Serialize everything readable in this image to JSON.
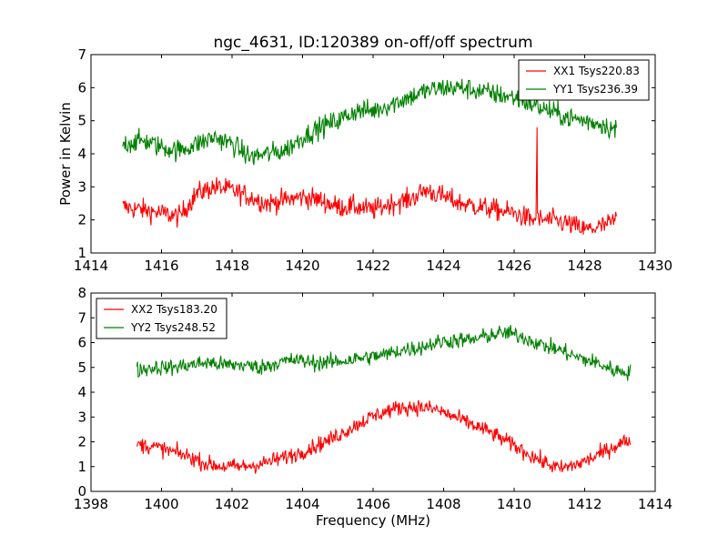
{
  "figure": {
    "title": "ngc_4631, ID:120389 on-off/off spectrum"
  },
  "chart_data": [
    {
      "type": "line",
      "title": "ngc_4631, ID:120389 on-off/off spectrum",
      "xlabel": "",
      "ylabel": "Power in Kelvin",
      "xlim": [
        1414,
        1430
      ],
      "ylim": [
        1,
        7
      ],
      "xticks": [
        "1414",
        "1416",
        "1418",
        "1420",
        "1422",
        "1424",
        "1426",
        "1428",
        "1430"
      ],
      "yticks": [
        "1",
        "2",
        "3",
        "4",
        "5",
        "6",
        "7"
      ],
      "grid": false,
      "legend_position": "top-right",
      "series": [
        {
          "name": "XX1 Tsys220.83",
          "color": "#ff0000",
          "x": [
            1414.9,
            1415.5,
            1416.0,
            1416.5,
            1417.0,
            1417.5,
            1418.0,
            1418.5,
            1419.0,
            1419.5,
            1420.0,
            1420.5,
            1421.0,
            1421.5,
            1422.0,
            1422.5,
            1423.0,
            1423.5,
            1424.0,
            1424.5,
            1425.0,
            1425.5,
            1426.0,
            1426.5,
            1427.0,
            1427.5,
            1428.0,
            1428.5,
            1428.9
          ],
          "values": [
            2.4,
            2.3,
            2.2,
            2.1,
            2.8,
            3.0,
            2.9,
            2.7,
            2.5,
            2.6,
            2.7,
            2.6,
            2.4,
            2.4,
            2.3,
            2.5,
            2.6,
            2.9,
            2.7,
            2.5,
            2.4,
            2.3,
            2.2,
            2.0,
            2.0,
            1.9,
            1.7,
            1.8,
            2.0
          ]
        },
        {
          "name": "YY1 Tsys236.39",
          "color": "#008000",
          "x": [
            1414.9,
            1415.5,
            1416.0,
            1416.5,
            1417.0,
            1417.5,
            1418.0,
            1418.5,
            1419.0,
            1419.5,
            1420.0,
            1420.5,
            1421.0,
            1421.5,
            1422.0,
            1422.5,
            1423.0,
            1423.5,
            1424.0,
            1424.5,
            1425.0,
            1425.5,
            1426.0,
            1426.5,
            1427.0,
            1427.5,
            1428.0,
            1428.5,
            1428.9
          ],
          "values": [
            4.3,
            4.4,
            4.2,
            4.1,
            4.3,
            4.5,
            4.3,
            3.9,
            4.0,
            4.1,
            4.5,
            4.8,
            5.0,
            5.3,
            5.3,
            5.5,
            5.7,
            5.9,
            6.0,
            6.0,
            5.9,
            5.8,
            5.7,
            5.5,
            5.3,
            5.1,
            5.0,
            4.9,
            4.7
          ]
        }
      ],
      "spike": {
        "series": "XX1 Tsys220.83",
        "x": 1426.65,
        "y": 4.8
      }
    },
    {
      "type": "line",
      "title": "",
      "xlabel": "Frequency (MHz)",
      "ylabel": "",
      "xlim": [
        1398,
        1414
      ],
      "ylim": [
        0,
        8
      ],
      "xticks": [
        "1398",
        "1400",
        "1402",
        "1404",
        "1406",
        "1408",
        "1410",
        "1412",
        "1414"
      ],
      "yticks": [
        "0",
        "1",
        "2",
        "3",
        "4",
        "5",
        "6",
        "7",
        "8"
      ],
      "grid": false,
      "legend_position": "top-left",
      "series": [
        {
          "name": "XX2 Tsys183.20",
          "color": "#ff0000",
          "x": [
            1399.3,
            1399.8,
            1400.3,
            1400.8,
            1401.3,
            1401.8,
            1402.3,
            1402.8,
            1403.3,
            1403.8,
            1404.3,
            1404.8,
            1405.3,
            1405.8,
            1406.3,
            1406.8,
            1407.3,
            1407.8,
            1408.3,
            1408.8,
            1409.3,
            1409.8,
            1410.3,
            1410.8,
            1411.3,
            1411.8,
            1412.3,
            1412.8,
            1413.3
          ],
          "values": [
            1.9,
            1.8,
            1.6,
            1.4,
            1.1,
            1.0,
            1.0,
            1.1,
            1.3,
            1.5,
            1.8,
            2.1,
            2.5,
            2.9,
            3.2,
            3.4,
            3.4,
            3.3,
            3.0,
            2.7,
            2.4,
            2.0,
            1.6,
            1.2,
            0.9,
            1.1,
            1.4,
            1.8,
            2.1
          ]
        },
        {
          "name": "YY2 Tsys248.52",
          "color": "#008000",
          "x": [
            1399.3,
            1399.8,
            1400.3,
            1400.8,
            1401.3,
            1401.8,
            1402.3,
            1402.8,
            1403.3,
            1403.8,
            1404.3,
            1404.8,
            1405.3,
            1405.8,
            1406.3,
            1406.8,
            1407.3,
            1407.8,
            1408.3,
            1408.8,
            1409.3,
            1409.8,
            1410.3,
            1410.8,
            1411.3,
            1411.8,
            1412.3,
            1412.8,
            1413.3
          ],
          "values": [
            4.9,
            5.0,
            5.0,
            5.1,
            5.2,
            5.1,
            5.1,
            5.0,
            5.2,
            5.3,
            5.2,
            5.2,
            5.3,
            5.4,
            5.5,
            5.7,
            5.8,
            6.0,
            6.1,
            6.1,
            6.3,
            6.4,
            6.2,
            5.9,
            5.7,
            5.4,
            5.2,
            4.9,
            4.8
          ]
        }
      ]
    }
  ]
}
